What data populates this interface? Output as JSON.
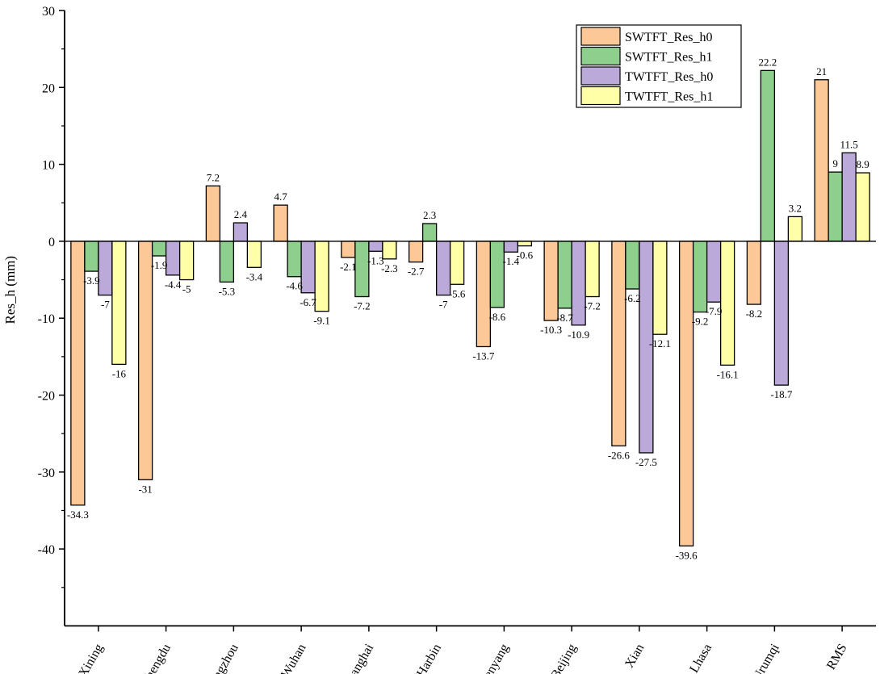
{
  "chart_data": {
    "type": "bar",
    "title": "",
    "xlabel": "",
    "ylabel": "Res_h (mm)",
    "ylim": [
      -50,
      30
    ],
    "yticks": [
      30,
      20,
      10,
      0,
      -10,
      -20,
      -30,
      -40
    ],
    "grid": false,
    "legend_position": "top-right",
    "categories": [
      "Xining",
      "Chengdu",
      "Guangzhou",
      "Wuhan",
      "Shanghai",
      "Harbin",
      "Shenyang",
      "Beijing",
      "Xian",
      "Lhasa",
      "Urumqi",
      "RMS"
    ],
    "series": [
      {
        "name": "SWTFT_Res_h0",
        "color": "#FDC897",
        "values": [
          -34.3,
          -31,
          7.2,
          4.7,
          -2.1,
          -2.7,
          -13.7,
          -10.3,
          -26.6,
          -39.6,
          -8.2,
          21
        ]
      },
      {
        "name": "SWTFT_Res_h1",
        "color": "#8FCF8E",
        "values": [
          -3.9,
          -1.9,
          -5.3,
          -4.6,
          -7.2,
          2.3,
          -8.6,
          -8.7,
          -6.2,
          -9.2,
          22.2,
          9
        ]
      },
      {
        "name": "TWTFT_Res_h0",
        "color": "#BBA9DA",
        "values": [
          -7,
          -4.4,
          2.4,
          -6.7,
          -1.3,
          -7,
          -1.4,
          -10.9,
          -27.5,
          -7.9,
          -18.7,
          11.5
        ]
      },
      {
        "name": "TWTFT_Res_h1",
        "color": "#FFFFA8",
        "values": [
          -16,
          -5,
          -3.4,
          -9.1,
          -2.3,
          -5.6,
          -0.6,
          -7.2,
          -12.1,
          -16.1,
          3.2,
          8.9
        ]
      }
    ]
  }
}
